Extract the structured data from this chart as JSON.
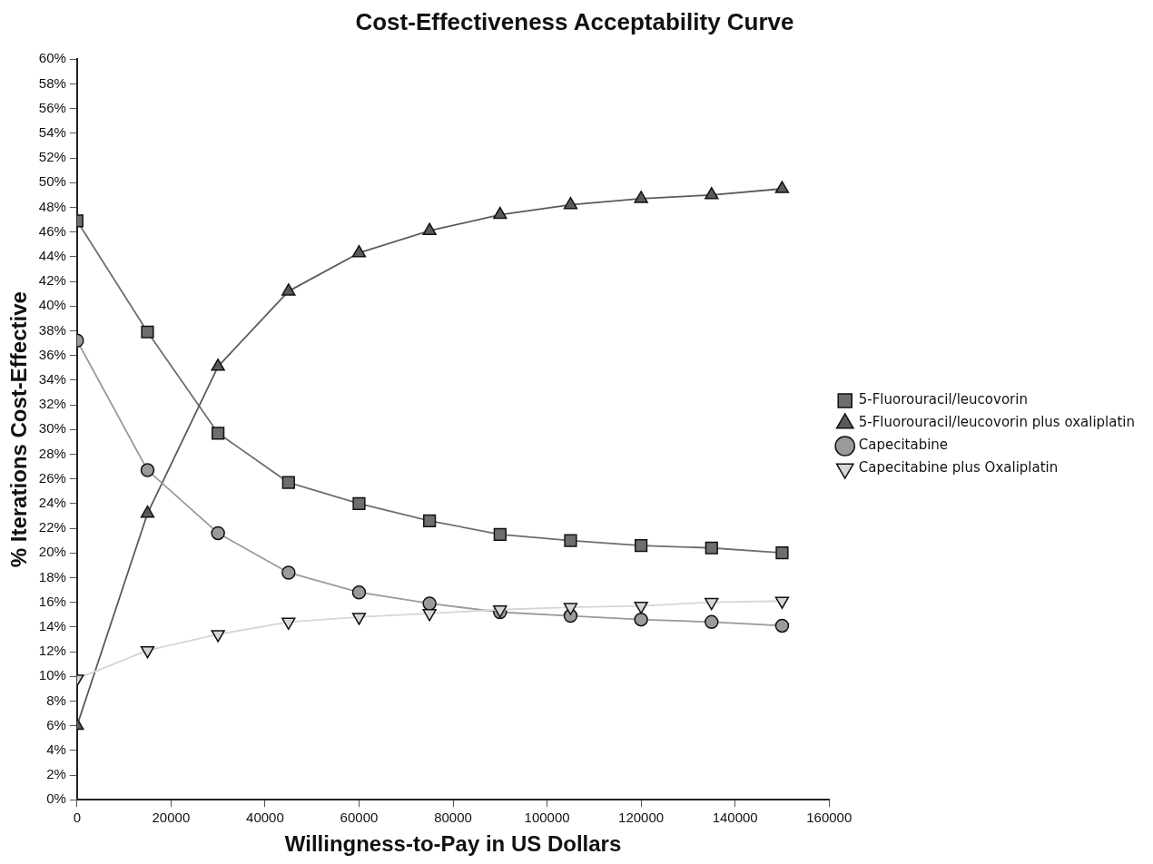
{
  "chart_data": {
    "type": "line",
    "title": "Cost-Effectiveness Acceptability Curve",
    "xlabel": "Willingness-to-Pay in US Dollars",
    "ylabel": "% Iterations Cost-Effective",
    "x": [
      0,
      15000,
      30000,
      45000,
      60000,
      75000,
      90000,
      105000,
      120000,
      135000,
      150000
    ],
    "series": [
      {
        "name": "5-Fluorouracil/leucovorin",
        "color": "#6e6e6e",
        "marker": "square",
        "values": [
          46.9,
          37.9,
          29.7,
          25.7,
          24.0,
          22.6,
          21.5,
          21.0,
          20.6,
          20.4,
          20.0
        ]
      },
      {
        "name": "5-Fluorouracil/leucovorin plus oxaliplatin",
        "color": "#5a5a5a",
        "marker": "triangle",
        "values": [
          6.0,
          23.2,
          35.1,
          41.2,
          44.3,
          46.1,
          47.4,
          48.2,
          48.7,
          49.0,
          49.5
        ]
      },
      {
        "name": "Capecitabine",
        "color": "#9a9a9a",
        "marker": "circle",
        "values": [
          37.2,
          26.7,
          21.6,
          18.4,
          16.8,
          15.9,
          15.2,
          14.9,
          14.6,
          14.4,
          14.1
        ]
      },
      {
        "name": "Capecitabine plus Oxaliplatin",
        "color": "#d6d6d6",
        "marker": "triangle-down",
        "values": [
          9.8,
          12.1,
          13.4,
          14.4,
          14.8,
          15.1,
          15.4,
          15.6,
          15.7,
          16.0,
          16.1
        ]
      }
    ],
    "xlim": [
      0,
      160000
    ],
    "xticks": [
      0,
      20000,
      40000,
      60000,
      80000,
      100000,
      120000,
      140000,
      160000
    ],
    "ylim": [
      0,
      60
    ],
    "yticks": [
      {
        "value": 0,
        "label": "0%"
      },
      {
        "value": 2,
        "label": "2%"
      },
      {
        "value": 4,
        "label": "4%"
      },
      {
        "value": 6,
        "label": "6%"
      },
      {
        "value": 8,
        "label": "8%"
      },
      {
        "value": 10,
        "label": "10%"
      },
      {
        "value": 12,
        "label": "12%"
      },
      {
        "value": 14,
        "label": "14%"
      },
      {
        "value": 16,
        "label": "16%"
      },
      {
        "value": 18,
        "label": "18%"
      },
      {
        "value": 20,
        "label": "20%"
      },
      {
        "value": 22,
        "label": "22%"
      },
      {
        "value": 24,
        "label": "24%"
      },
      {
        "value": 26,
        "label": "26%"
      },
      {
        "value": 28,
        "label": "28%"
      },
      {
        "value": 30,
        "label": "30%"
      },
      {
        "value": 32,
        "label": "32%"
      },
      {
        "value": 34,
        "label": "34%"
      },
      {
        "value": 36,
        "label": "36%"
      },
      {
        "value": 38,
        "label": "38%"
      },
      {
        "value": 40,
        "label": "40%"
      },
      {
        "value": 42,
        "label": "42%"
      },
      {
        "value": 44,
        "label": "44%"
      },
      {
        "value": 46,
        "label": "46%"
      },
      {
        "value": 48,
        "label": "48%"
      },
      {
        "value": 50,
        "label": "50%"
      },
      {
        "value": 52,
        "label": "52%"
      },
      {
        "value": 54,
        "label": "54%"
      },
      {
        "value": 56,
        "label": "56%"
      },
      {
        "value": 58,
        "label": "58%"
      },
      {
        "value": 60,
        "label": "60%"
      }
    ],
    "grid": false,
    "legend": "right"
  }
}
